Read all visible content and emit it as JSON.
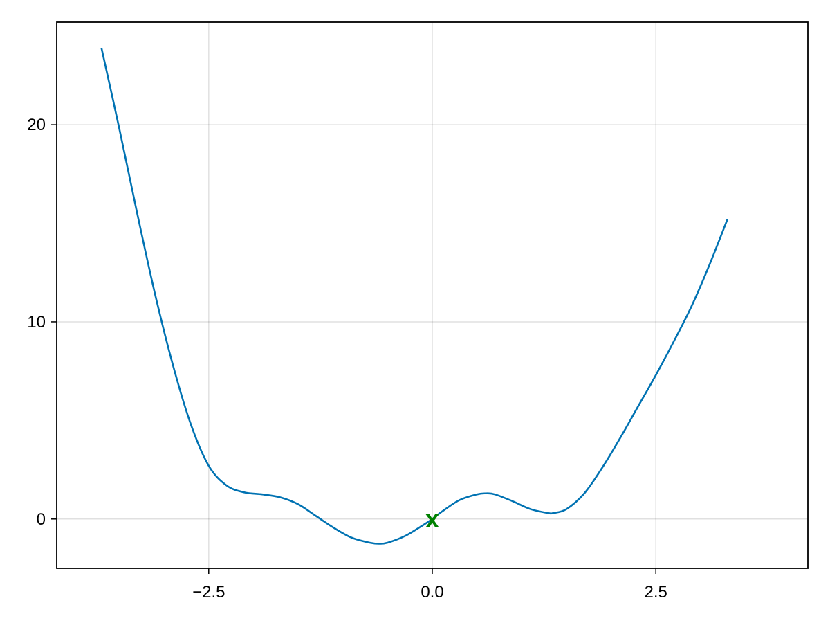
{
  "chart_data": {
    "type": "line",
    "title": "",
    "xlabel": "",
    "ylabel": "",
    "xlim": [
      -4.2,
      4.2
    ],
    "ylim": [
      -2.5,
      25.2
    ],
    "xticks": [
      {
        "value": -2.5,
        "label": "−2.5"
      },
      {
        "value": 0.0,
        "label": "0.0"
      },
      {
        "value": 2.5,
        "label": "2.5"
      }
    ],
    "yticks": [
      {
        "value": 0,
        "label": "0"
      },
      {
        "value": 10,
        "label": "10"
      },
      {
        "value": 20,
        "label": "20"
      }
    ],
    "grid": true,
    "line_color": "#0072B2",
    "series": [
      {
        "x": [
          -3.7,
          -3.5,
          -3.3,
          -3.1,
          -2.9,
          -2.7,
          -2.5,
          -2.3,
          -2.1,
          -1.9,
          -1.7,
          -1.5,
          -1.3,
          -1.1,
          -0.9,
          -0.7,
          -0.6,
          -0.5,
          -0.3,
          -0.1,
          0.0,
          0.1,
          0.3,
          0.5,
          0.6,
          0.7,
          0.9,
          1.1,
          1.3,
          1.35,
          1.5,
          1.7,
          1.9,
          2.1,
          2.3,
          2.5,
          2.7,
          2.9,
          3.1,
          3.3
        ],
        "y": [
          23.9,
          19.8,
          15.5,
          11.4,
          7.8,
          4.8,
          2.7,
          1.7,
          1.35,
          1.25,
          1.1,
          0.75,
          0.15,
          -0.45,
          -0.95,
          -1.2,
          -1.25,
          -1.2,
          -0.85,
          -0.3,
          0.0,
          0.35,
          0.95,
          1.25,
          1.3,
          1.25,
          0.9,
          0.5,
          0.3,
          0.3,
          0.5,
          1.3,
          2.6,
          4.1,
          5.7,
          7.3,
          9.0,
          10.8,
          12.9,
          15.2
        ]
      }
    ],
    "marker": {
      "x": 0.0,
      "y": 0.0,
      "symbol": "x",
      "color": "#008000"
    }
  }
}
